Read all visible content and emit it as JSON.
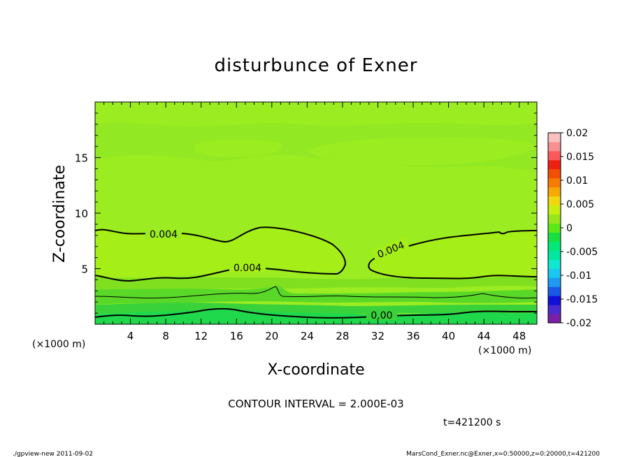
{
  "chart_data": {
    "type": "heatmap",
    "title": "disturbunce of Exner",
    "xlabel": "X-coordinate",
    "ylabel": "Z-coordinate",
    "x_unit": "(×1000 m)",
    "x_unit_right": "(×1000 m)",
    "xlim": [
      0,
      50
    ],
    "ylim": [
      0,
      20
    ],
    "x_ticks": [
      "4",
      "8",
      "12",
      "16",
      "20",
      "24",
      "28",
      "32",
      "36",
      "40",
      "44",
      "48"
    ],
    "y_ticks": [
      "5",
      "10",
      "15"
    ],
    "contour_interval_text": "CONTOUR INTERVAL = 2.000E-03",
    "time_text": "t=421200 s",
    "colorbar": {
      "labels": [
        "0.02",
        "0.015",
        "0.01",
        "0.005",
        "0",
        "-0.005",
        "-0.01",
        "-0.015",
        "-0.02"
      ],
      "min": -0.02,
      "max": 0.02,
      "colors": [
        "#7a1fa8",
        "#4b2bd0",
        "#1010d8",
        "#1a5ae8",
        "#1f9af0",
        "#19c8f0",
        "#10e8d0",
        "#00e8a0",
        "#00e878",
        "#18e040",
        "#5ae81a",
        "#96e61a",
        "#c8ee10",
        "#f0d810",
        "#f8a800",
        "#f87c00",
        "#f05000",
        "#f02010",
        "#f85a5a",
        "#f89090",
        "#f8c0c0"
      ]
    },
    "contour_labels": [
      "0.004",
      "0.004",
      "0.004",
      "0.00"
    ],
    "field_bands": [
      {
        "z_range": [
          0,
          0.8
        ],
        "approx_value": 0.0
      },
      {
        "z_range": [
          0.8,
          2.5
        ],
        "approx_value": 0.001
      },
      {
        "z_range": [
          2.5,
          4.2
        ],
        "approx_value": 0.003
      },
      {
        "z_range": [
          4.2,
          8.3
        ],
        "approx_value": 0.0045
      },
      {
        "z_range": [
          8.3,
          20
        ],
        "approx_value": 0.004
      }
    ]
  },
  "footer": {
    "left": "./gpview-new  2011-09-02",
    "right": "MarsCond_Exner.nc@Exner,x=0:50000,z=0:20000,t=421200"
  }
}
